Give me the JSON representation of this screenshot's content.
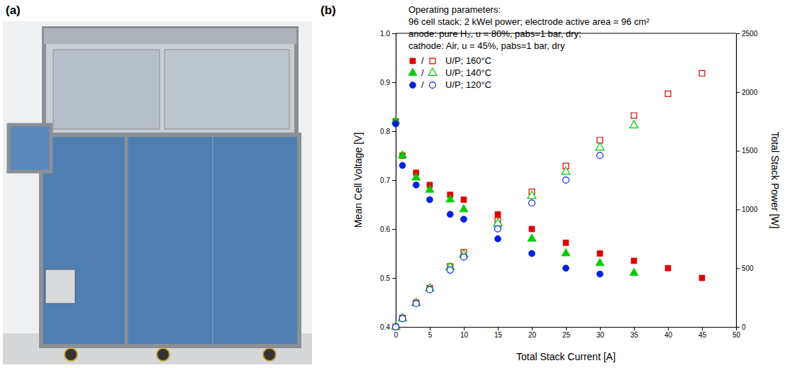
{
  "panel_labels": [
    "(a)",
    "(b)"
  ],
  "chart_data": {
    "type": "scatter",
    "x_label": "Total Stack Current [A]",
    "y_label": "Mean Cell Voltage [V]",
    "y2_label": "Total Stack Power [W]",
    "annotations": [
      "Operating parameters:",
      "96 cell stack; 2 kWel power; electrode active area = 96 cm²",
      "anode: pure H₂, u = 80%, pabs=1 bar, dry;",
      "cathode: Air, u = 45%, pabs=1 bar, dry"
    ],
    "legend": "upper left",
    "legend_separator": "/",
    "grid": false,
    "xlim": [
      0,
      50
    ],
    "xticks": [
      0,
      5,
      10,
      15,
      20,
      25,
      30,
      35,
      40,
      45,
      50
    ],
    "ylim": [
      0.4,
      1.0
    ],
    "yticks": [
      0.4,
      0.5,
      0.6,
      0.7,
      0.8,
      0.9,
      {
        "value": 1.0,
        "label": "1.0"
      }
    ],
    "y2lim": [
      0,
      2500
    ],
    "y2ticks": [
      0,
      500,
      1000,
      1500,
      2000,
      2500
    ],
    "series": [
      {
        "name": "U/P; 160°C",
        "color": "#dd0000",
        "marker": "square",
        "x": [
          0,
          1,
          3,
          5,
          8,
          10,
          15,
          20,
          25,
          30,
          35,
          40,
          45
        ],
        "values": [
          0.82,
          0.75,
          0.715,
          0.69,
          0.67,
          0.66,
          0.63,
          0.6,
          0.572,
          0.55,
          0.535,
          0.52,
          0.5
        ]
      },
      {
        "name": "U/P; 140°C",
        "color": "#00cc00",
        "marker": "triangle",
        "x": [
          0,
          1,
          3,
          5,
          8,
          10,
          15,
          20,
          25,
          30,
          35
        ],
        "values": [
          0.82,
          0.75,
          0.705,
          0.68,
          0.66,
          0.64,
          0.61,
          0.58,
          0.55,
          0.53,
          0.51
        ]
      },
      {
        "name": "U/P; 120°C",
        "color": "#0022dd",
        "marker": "circle",
        "x": [
          0,
          1,
          3,
          5,
          8,
          10,
          15,
          20,
          25,
          30
        ],
        "values": [
          0.815,
          0.73,
          0.69,
          0.66,
          0.63,
          0.62,
          0.58,
          0.55,
          0.52,
          0.508
        ]
      },
      {
        "name": "U/P; 160°C",
        "color": "#dd0000",
        "marker": "square-open",
        "axis": "y2",
        "x": [
          0,
          1,
          3,
          5,
          8,
          10,
          15,
          20,
          25,
          30,
          35,
          40,
          45
        ],
        "values": [
          0,
          75,
          205,
          330,
          515,
          635,
          905,
          1150,
          1370,
          1590,
          1800,
          1985,
          2160
        ]
      },
      {
        "name": "U/P; 140°C",
        "color": "#00cc00",
        "marker": "triangle-open",
        "axis": "y2",
        "x": [
          0,
          1,
          3,
          5,
          8,
          10,
          15,
          20,
          25,
          30,
          35
        ],
        "values": [
          0,
          72,
          203,
          326,
          507,
          615,
          880,
          1115,
          1320,
          1525,
          1715
        ]
      },
      {
        "name": "U/P; 120°C",
        "color": "#0022dd",
        "marker": "circle-open",
        "axis": "y2",
        "x": [
          0,
          1,
          3,
          5,
          8,
          10,
          15,
          20,
          25,
          30
        ],
        "values": [
          0,
          70,
          199,
          317,
          484,
          595,
          835,
          1055,
          1250,
          1460
        ]
      }
    ]
  }
}
